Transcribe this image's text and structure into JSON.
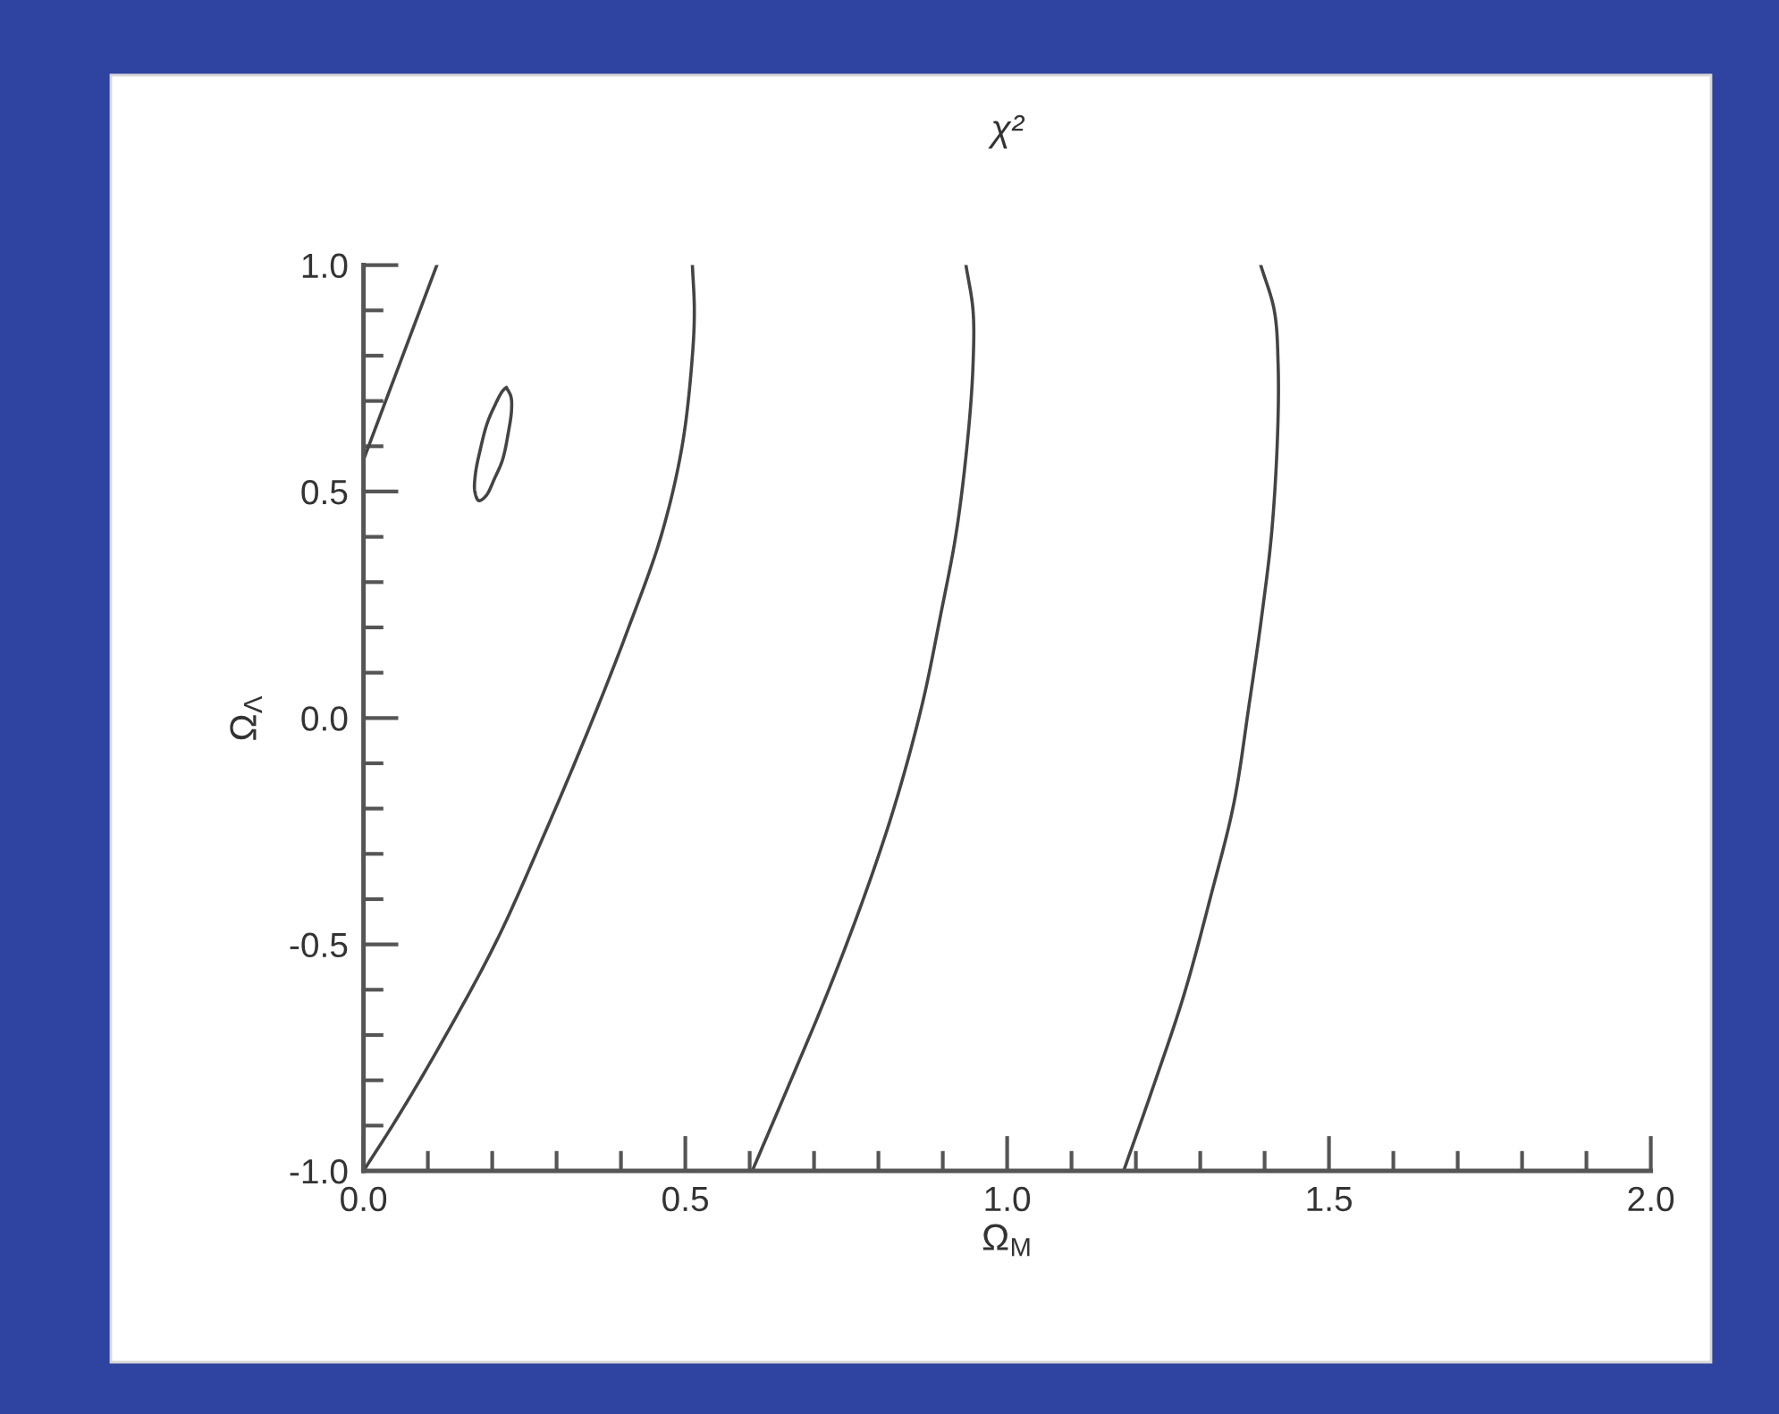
{
  "chart_data": {
    "type": "line",
    "title": "χ²",
    "xlabel": "Ω$_{M}$",
    "ylabel": "Ω$_{Λ}$",
    "xlim": [
      0,
      2
    ],
    "ylim": [
      -1,
      1
    ],
    "xticks": [
      {
        "value": 0,
        "label": "0.0"
      },
      {
        "value": 0.1,
        "label": null
      },
      {
        "value": 0.2,
        "label": null
      },
      {
        "value": 0.3,
        "label": null
      },
      {
        "value": 0.4,
        "label": null
      },
      {
        "value": 0.5,
        "label": "0.5"
      },
      {
        "value": 0.6,
        "label": null
      },
      {
        "value": 0.7,
        "label": null
      },
      {
        "value": 0.8,
        "label": null
      },
      {
        "value": 0.9,
        "label": null
      },
      {
        "value": 1,
        "label": "1.0"
      },
      {
        "value": 1.1,
        "label": null
      },
      {
        "value": 1.2,
        "label": null
      },
      {
        "value": 1.3,
        "label": null
      },
      {
        "value": 1.4,
        "label": null
      },
      {
        "value": 1.5,
        "label": "1.5"
      },
      {
        "value": 1.6,
        "label": null
      },
      {
        "value": 1.7,
        "label": null
      },
      {
        "value": 1.8,
        "label": null
      },
      {
        "value": 1.9,
        "label": null
      },
      {
        "value": 2,
        "label": "2.0"
      }
    ],
    "yticks": [
      {
        "value": -1,
        "label": "-1.0"
      },
      {
        "value": -0.9,
        "label": null
      },
      {
        "value": -0.8,
        "label": null
      },
      {
        "value": -0.7,
        "label": null
      },
      {
        "value": -0.6,
        "label": null
      },
      {
        "value": -0.5,
        "label": "-0.5"
      },
      {
        "value": -0.4,
        "label": null
      },
      {
        "value": -0.3,
        "label": null
      },
      {
        "value": -0.2,
        "label": null
      },
      {
        "value": -0.1,
        "label": null
      },
      {
        "value": 0,
        "label": "0.0"
      },
      {
        "value": 0.1,
        "label": null
      },
      {
        "value": 0.2,
        "label": null
      },
      {
        "value": 0.3,
        "label": null
      },
      {
        "value": 0.4,
        "label": null
      },
      {
        "value": 0.5,
        "label": "0.5"
      },
      {
        "value": 0.6,
        "label": null
      },
      {
        "value": 0.7,
        "label": null
      },
      {
        "value": 0.8,
        "label": null
      },
      {
        "value": 0.9,
        "label": null
      },
      {
        "value": 1,
        "label": "1.0"
      }
    ],
    "series": [
      {
        "color": "#444444",
        "x": [
          0,
          0.114
        ],
        "values": [
          0.57,
          1.0
        ]
      },
      {
        "color": "#444444",
        "x": [
          0.222,
          0.229,
          0.23,
          0.225,
          0.216,
          0.204,
          0.19,
          0.179,
          0.173,
          0.174,
          0.181,
          0.192,
          0.204,
          0.215,
          0.22
        ],
        "values": [
          0.73,
          0.71,
          0.68,
          0.63,
          0.57,
          0.53,
          0.49,
          0.48,
          0.5,
          0.54,
          0.59,
          0.65,
          0.69,
          0.72,
          0.728
        ]
      },
      {
        "color": "#444444",
        "x": [
          0,
          0.045,
          0.108,
          0.204,
          0.283,
          0.357,
          0.412,
          0.462,
          0.495,
          0.511,
          0.514,
          0.511
        ],
        "values": [
          -1.0,
          -0.9,
          -0.75,
          -0.5,
          -0.25,
          0.0,
          0.2,
          0.4,
          0.6,
          0.8,
          0.9,
          1.0
        ]
      },
      {
        "color": "#444444",
        "x": [
          0.604,
          0.661,
          0.72,
          0.779,
          0.826,
          0.868,
          0.897,
          0.921,
          0.939,
          0.947,
          0.947,
          0.936
        ],
        "values": [
          -1.0,
          -0.81,
          -0.61,
          -0.39,
          -0.19,
          0.03,
          0.23,
          0.41,
          0.62,
          0.78,
          0.9,
          1.0
        ]
      },
      {
        "color": "#444444",
        "x": [
          1.181,
          1.228,
          1.275,
          1.317,
          1.352,
          1.376,
          1.396,
          1.411,
          1.42,
          1.421,
          1.415,
          1.394
        ],
        "values": [
          -1.0,
          -0.81,
          -0.61,
          -0.39,
          -0.19,
          0.03,
          0.23,
          0.41,
          0.62,
          0.78,
          0.9,
          1.0
        ]
      }
    ]
  }
}
